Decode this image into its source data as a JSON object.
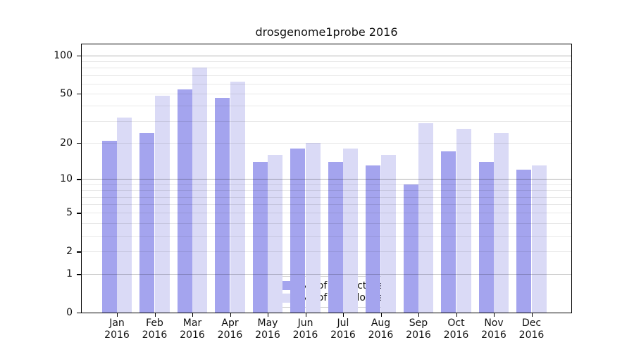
{
  "figure": {
    "title": "drosgenome1probe 2016",
    "background": "#ffffff"
  },
  "chart_data": {
    "type": "bar",
    "title": "drosgenome1probe 2016",
    "scale": "log1p (y position proportional to log10(1+value))",
    "grid": "on",
    "legend_position": "inside lower-center",
    "categories": [
      "Jan",
      "Feb",
      "Mar",
      "Apr",
      "May",
      "Jun",
      "Jul",
      "Aug",
      "Sep",
      "Oct",
      "Nov",
      "Dec"
    ],
    "year": "2016",
    "series": [
      {
        "name": "Nb of distinct IPs",
        "color": "#a4a4ee",
        "values": [
          21,
          24,
          54,
          46,
          14,
          18,
          14,
          13,
          9,
          17,
          14,
          12
        ]
      },
      {
        "name": "Nb of downloads",
        "color": "#dadaf6",
        "values": [
          32,
          48,
          80,
          62,
          16,
          20,
          18,
          16,
          29,
          26,
          24,
          13
        ]
      }
    ],
    "y_ticks": [
      100,
      50,
      20,
      10,
      5,
      2,
      1,
      0
    ],
    "ylim": [
      0,
      122
    ],
    "xlabel": "",
    "ylabel": ""
  },
  "colors": {
    "ips_bar": "#a4a4ee",
    "downloads_bar": "#dadaf6",
    "major_grid": "#b3b3b3",
    "minor_grid": "#e8e8e8",
    "axis": "#000000",
    "text": "#111111"
  }
}
